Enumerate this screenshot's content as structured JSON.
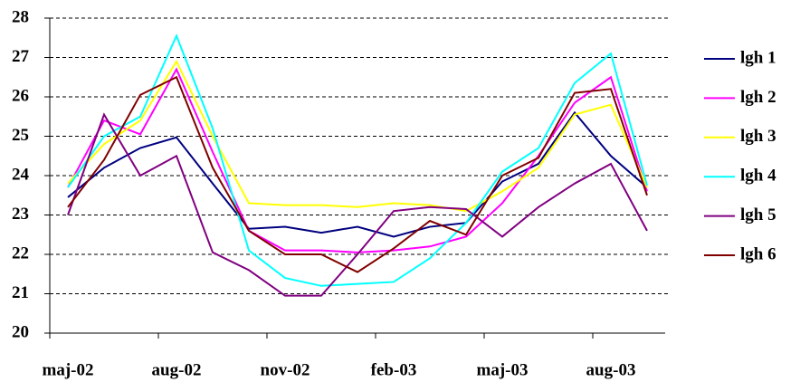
{
  "chart_data": {
    "type": "line",
    "categories": [
      "maj-02",
      null,
      null,
      "aug-02",
      null,
      null,
      "nov-02",
      null,
      null,
      "feb-03",
      null,
      null,
      "maj-03",
      null,
      null,
      "aug-03",
      null
    ],
    "series": [
      {
        "name": "lgh 1",
        "color": "#000080",
        "values": [
          23.45,
          24.2,
          24.7,
          24.97,
          23.8,
          22.65,
          22.7,
          22.55,
          22.7,
          22.45,
          22.7,
          22.8,
          23.85,
          24.3,
          25.6,
          24.5,
          23.7
        ]
      },
      {
        "name": "lgh 2",
        "color": "#ff00ff",
        "values": [
          23.7,
          25.4,
          25.05,
          26.7,
          24.6,
          22.6,
          22.1,
          22.1,
          22.05,
          22.1,
          22.2,
          22.45,
          23.3,
          24.5,
          25.85,
          26.5,
          23.6
        ]
      },
      {
        "name": "lgh 3",
        "color": "#ffff00",
        "values": [
          23.8,
          24.8,
          25.4,
          26.9,
          25.0,
          23.3,
          23.25,
          23.25,
          23.2,
          23.3,
          23.25,
          23.1,
          23.6,
          24.2,
          25.55,
          25.8,
          23.7
        ]
      },
      {
        "name": "lgh 4",
        "color": "#00ffff",
        "values": [
          23.7,
          25.0,
          25.5,
          27.55,
          25.2,
          22.1,
          21.4,
          21.2,
          21.25,
          21.3,
          21.9,
          22.8,
          24.1,
          24.7,
          26.35,
          27.1,
          23.75
        ]
      },
      {
        "name": "lgh 5",
        "color": "#800080",
        "values": [
          23.0,
          25.55,
          24.0,
          24.5,
          22.05,
          21.6,
          20.95,
          20.95,
          22.0,
          23.1,
          23.2,
          23.15,
          22.45,
          23.2,
          23.8,
          24.3,
          22.6
        ]
      },
      {
        "name": "lgh 6",
        "color": "#800000",
        "values": [
          23.2,
          24.4,
          26.05,
          26.5,
          24.2,
          22.6,
          22.0,
          22.0,
          21.55,
          22.15,
          22.85,
          22.5,
          24.0,
          24.45,
          26.1,
          26.2,
          23.5
        ]
      }
    ],
    "ylim": [
      20,
      28
    ],
    "yticks": [
      20,
      21,
      22,
      23,
      24,
      25,
      26,
      27,
      28
    ],
    "grid": true
  }
}
